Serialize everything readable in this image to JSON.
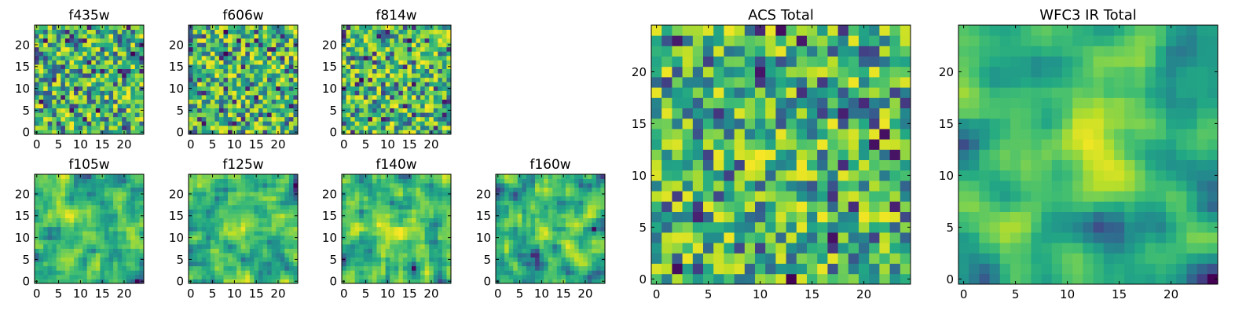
{
  "chart_data": [
    {
      "type": "heatmap",
      "title": "f435w",
      "colormap": "viridis",
      "shape": [
        25,
        25
      ],
      "xticks": [
        "0",
        "5",
        "10",
        "15",
        "20"
      ],
      "yticks": [
        "0",
        "5",
        "10",
        "15",
        "20"
      ],
      "xlim": [
        0,
        25
      ],
      "ylim": [
        0,
        25
      ],
      "seed": 11,
      "smooth": 0,
      "blob": 0
    },
    {
      "type": "heatmap",
      "title": "f606w",
      "colormap": "viridis",
      "shape": [
        25,
        25
      ],
      "xticks": [
        "0",
        "5",
        "10",
        "15",
        "20"
      ],
      "yticks": [
        "0",
        "5",
        "10",
        "15",
        "20"
      ],
      "xlim": [
        0,
        25
      ],
      "ylim": [
        0,
        25
      ],
      "seed": 23,
      "smooth": 0,
      "blob": 0
    },
    {
      "type": "heatmap",
      "title": "f814w",
      "colormap": "viridis",
      "shape": [
        25,
        25
      ],
      "xticks": [
        "0",
        "5",
        "10",
        "15",
        "20"
      ],
      "yticks": [
        "0",
        "5",
        "10",
        "15",
        "20"
      ],
      "xlim": [
        0,
        25
      ],
      "ylim": [
        0,
        25
      ],
      "seed": 37,
      "smooth": 0,
      "blob": 0
    },
    {
      "type": "heatmap",
      "title": "f105w",
      "colormap": "viridis",
      "shape": [
        25,
        25
      ],
      "xticks": [
        "0",
        "5",
        "10",
        "15",
        "20"
      ],
      "yticks": [
        "0",
        "5",
        "10",
        "15",
        "20"
      ],
      "xlim": [
        0,
        25
      ],
      "ylim": [
        0,
        25
      ],
      "seed": 41,
      "smooth": 1,
      "blob": 0.15
    },
    {
      "type": "heatmap",
      "title": "f125w",
      "colormap": "viridis",
      "shape": [
        25,
        25
      ],
      "xticks": [
        "0",
        "5",
        "10",
        "15",
        "20"
      ],
      "yticks": [
        "0",
        "5",
        "10",
        "15",
        "20"
      ],
      "xlim": [
        0,
        25
      ],
      "ylim": [
        0,
        25
      ],
      "seed": 53,
      "smooth": 1,
      "blob": 0.15
    },
    {
      "type": "heatmap",
      "title": "f140w",
      "colormap": "viridis",
      "shape": [
        25,
        25
      ],
      "xticks": [
        "0",
        "5",
        "10",
        "15",
        "20"
      ],
      "yticks": [
        "0",
        "5",
        "10",
        "15",
        "20"
      ],
      "xlim": [
        0,
        25
      ],
      "ylim": [
        0,
        25
      ],
      "seed": 67,
      "smooth": 1,
      "blob": 0.2
    },
    {
      "type": "heatmap",
      "title": "f160w",
      "colormap": "viridis",
      "shape": [
        25,
        25
      ],
      "xticks": [
        "0",
        "5",
        "10",
        "15",
        "20"
      ],
      "yticks": [
        "0",
        "5",
        "10",
        "15",
        "20"
      ],
      "xlim": [
        0,
        25
      ],
      "ylim": [
        0,
        25
      ],
      "seed": 79,
      "smooth": 1,
      "blob": 0.25
    },
    {
      "type": "heatmap",
      "title": "ACS Total",
      "colormap": "viridis",
      "shape": [
        25,
        25
      ],
      "xticks": [
        "0",
        "5",
        "10",
        "15",
        "20"
      ],
      "yticks": [
        "0",
        "5",
        "10",
        "15",
        "20"
      ],
      "xlim": [
        0,
        25
      ],
      "ylim": [
        0,
        25
      ],
      "seed": 97,
      "smooth": 0,
      "blob": 0.1
    },
    {
      "type": "heatmap",
      "title": "WFC3 IR Total",
      "colormap": "viridis",
      "shape": [
        25,
        25
      ],
      "xticks": [
        "0",
        "5",
        "10",
        "15",
        "20"
      ],
      "yticks": [
        "0",
        "5",
        "10",
        "15",
        "20"
      ],
      "xlim": [
        0,
        25
      ],
      "ylim": [
        0,
        25
      ],
      "seed": 131,
      "smooth": 2,
      "blob": 0.55
    }
  ]
}
